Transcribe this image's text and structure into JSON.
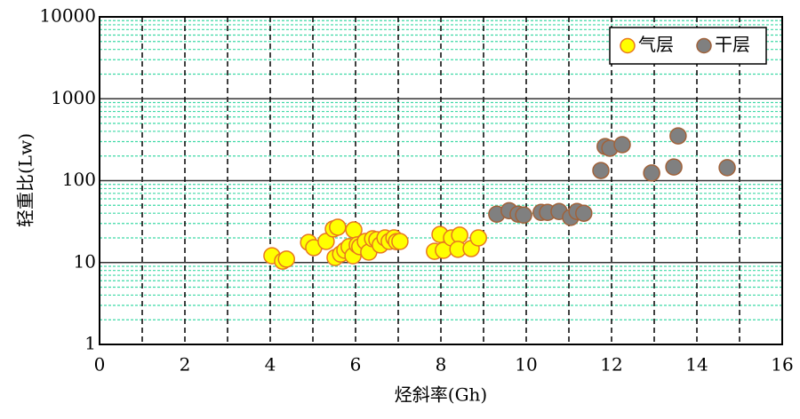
{
  "chart_data": {
    "type": "scatter",
    "x_label": "烃斜率(Gh)",
    "y_label": "轻重比(Lw)",
    "xlim": [
      0,
      16
    ],
    "xticks": [
      0,
      2,
      4,
      6,
      8,
      10,
      12,
      14,
      16
    ],
    "ylim": [
      1,
      10000
    ],
    "yticks": [
      1,
      10,
      100,
      1000,
      10000
    ],
    "y_scale": "log",
    "grid": true,
    "legend": "upper right",
    "series": [
      {
        "name": "气层",
        "color": "#ffff00",
        "edge_color": "#e8781e",
        "x": [
          4.04,
          4.29,
          4.38,
          4.9,
          5.02,
          5.31,
          5.48,
          5.58,
          5.52,
          5.65,
          5.75,
          5.85,
          5.96,
          5.94,
          6.04,
          6.1,
          6.23,
          6.31,
          6.4,
          6.5,
          6.58,
          6.69,
          6.79,
          6.9,
          6.96,
          7.04,
          7.85,
          7.98,
          8.06,
          8.25,
          8.44,
          8.4,
          8.71,
          8.88
        ],
        "values": [
          12.1,
          10.4,
          11.0,
          17.6,
          15.2,
          18.1,
          25.7,
          27,
          11.5,
          12.7,
          14.1,
          15.6,
          25,
          12.1,
          16.4,
          15.6,
          18.1,
          13.4,
          19.5,
          19,
          16.4,
          20,
          18.1,
          20,
          18,
          18.1,
          13.7,
          22,
          14.1,
          20,
          21.6,
          14.5,
          14.8,
          20
        ]
      },
      {
        "name": "干层",
        "color": "#808080",
        "edge_color": "#a0623a",
        "x": [
          9.31,
          9.6,
          9.81,
          9.94,
          10.35,
          10.5,
          10.77,
          11.04,
          11.19,
          11.35,
          11.75,
          11.85,
          11.96,
          12.25,
          12.94,
          13.46,
          13.56,
          14.71
        ],
        "values": [
          39,
          43,
          39,
          38,
          41,
          41,
          42,
          35.6,
          42,
          40,
          133,
          261,
          249,
          275,
          124,
          147,
          352,
          144
        ]
      }
    ]
  }
}
